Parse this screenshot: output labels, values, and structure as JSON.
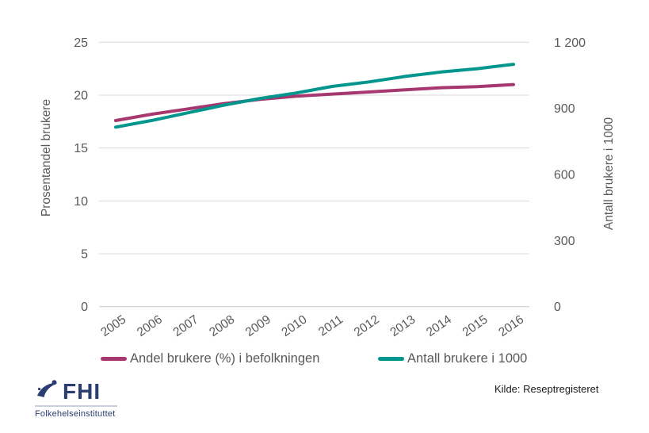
{
  "colors": {
    "andel_line": "#A6386F",
    "antall_line": "#00958D",
    "gridline": "#d9d9d9",
    "axis_line": "#c6c6c6",
    "axis_text": "#595959",
    "logo_navy": "#2b3e72",
    "source_text": "#1a1a1a",
    "background": "#ffffff"
  },
  "chart_data": {
    "type": "line",
    "title": "",
    "categories": [
      "2005",
      "2006",
      "2007",
      "2008",
      "2009",
      "2010",
      "2011",
      "2012",
      "2013",
      "2014",
      "2015",
      "2016"
    ],
    "series": [
      {
        "name": "Andel brukere (%) i befolkningen",
        "axis": "left",
        "color": "#A6386F",
        "values": [
          17.6,
          18.2,
          18.7,
          19.2,
          19.6,
          19.9,
          20.1,
          20.3,
          20.5,
          20.7,
          20.8,
          21.0
        ]
      },
      {
        "name": "Antall brukere i 1000",
        "axis": "right",
        "color": "#00958D",
        "values": [
          815,
          845,
          880,
          915,
          945,
          970,
          1000,
          1020,
          1045,
          1065,
          1080,
          1100
        ]
      }
    ],
    "left_axis": {
      "label": "Prosentandel brukere",
      "tick_values": [
        0,
        5,
        10,
        15,
        20,
        25
      ],
      "tick_labels": [
        "0",
        "5",
        "10",
        "15",
        "20",
        "25"
      ],
      "range": [
        0,
        25
      ]
    },
    "right_axis": {
      "label": "Antall brukere i 1000",
      "tick_values": [
        0,
        300,
        600,
        900,
        1200
      ],
      "tick_labels": [
        "0",
        "300",
        "600",
        "900",
        "1 200"
      ],
      "range": [
        0,
        1200
      ]
    },
    "grid": true,
    "legend_position": "bottom"
  },
  "legend": {
    "items": [
      {
        "label": "Andel brukere (%) i befolkningen"
      },
      {
        "label": "Antall brukere i 1000"
      }
    ]
  },
  "source": {
    "text": "Kilde: Reseptregisteret"
  },
  "logo": {
    "abbr": "FHI",
    "name": "Folkehelseinstituttet"
  }
}
